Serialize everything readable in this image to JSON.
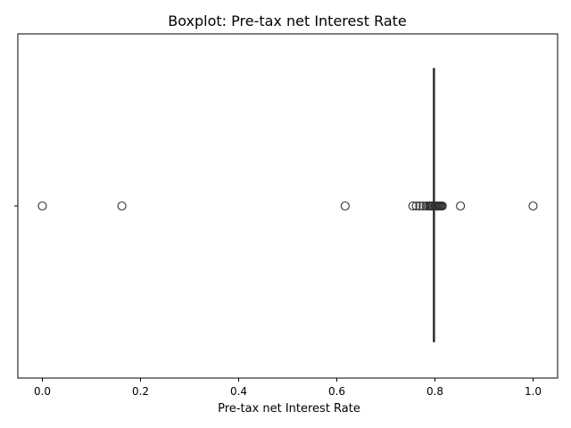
{
  "chart_data": {
    "type": "box",
    "title": "Boxplot:  Pre-tax net Interest Rate",
    "xlabel": "Pre-tax net Interest Rate",
    "ylabel": "",
    "xlim": [
      -0.05,
      1.05
    ],
    "xticks": [
      0.0,
      0.2,
      0.4,
      0.6,
      0.8,
      1.0
    ],
    "xtick_labels": [
      "0.0",
      "0.2",
      "0.4",
      "0.6",
      "0.8",
      "1.0"
    ],
    "orientation": "horizontal",
    "box": {
      "q1": 0.7971,
      "median": 0.7974,
      "q3": 0.7976,
      "whisker_low": 0.7963,
      "whisker_high": 0.7984
    },
    "outliers": [
      0.0,
      0.162,
      0.617,
      0.755,
      0.762,
      0.769,
      0.776,
      0.782,
      0.786,
      0.789,
      0.791,
      0.793,
      0.794,
      0.7955,
      0.7995,
      0.801,
      0.803,
      0.805,
      0.807,
      0.809,
      0.811,
      0.813,
      0.815,
      0.852,
      1.0
    ],
    "grid": false,
    "color": "#333333"
  }
}
